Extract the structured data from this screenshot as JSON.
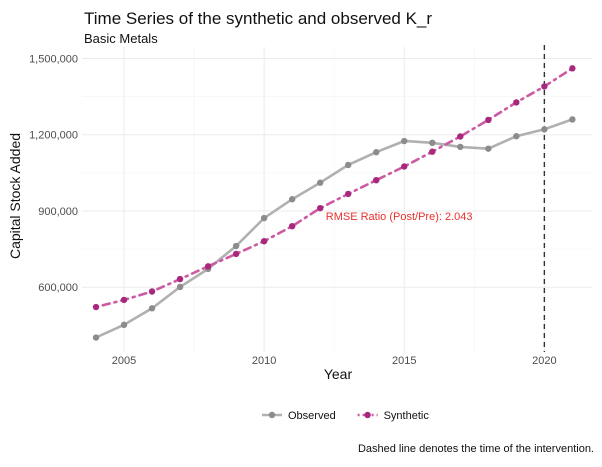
{
  "chart_data": {
    "type": "line",
    "title": "Time Series of the synthetic and observed K_r",
    "subtitle": "Basic Metals",
    "xlabel": "Year",
    "ylabel": "Capital Stock Added",
    "caption": "Dashed line denotes the time of the intervention.",
    "annotation": {
      "text": "RMSE Ratio (Post/Pre): 2.043",
      "x": 2012.2,
      "y": 865000,
      "color": "#e8322d"
    },
    "xlim": [
      2003.5,
      2021.7
    ],
    "ylim": [
      345000,
      1545000
    ],
    "x_ticks": [
      2005,
      2010,
      2015,
      2020
    ],
    "x_tick_labels": [
      "2005",
      "2010",
      "2015",
      "2020"
    ],
    "y_ticks": [
      600000,
      900000,
      1200000,
      1500000
    ],
    "y_tick_labels": [
      "600,000",
      "900,000",
      "1,200,000",
      "1,500,000"
    ],
    "intervention_x": 2020,
    "grid": true,
    "legend_position": "bottom",
    "x": [
      2004,
      2005,
      2006,
      2007,
      2008,
      2009,
      2010,
      2011,
      2012,
      2013,
      2014,
      2015,
      2016,
      2017,
      2018,
      2019,
      2020,
      2021
    ],
    "series": [
      {
        "name": "Observed",
        "color": "#8c8c8c",
        "line_color": "#b0b0b0",
        "linestyle": "solid",
        "values": [
          402000,
          452000,
          517000,
          601000,
          672000,
          762000,
          872000,
          946000,
          1011000,
          1081000,
          1131000,
          1175000,
          1168000,
          1152000,
          1145000,
          1194000,
          1221000,
          1260000
        ]
      },
      {
        "name": "Synthetic",
        "color": "#a8287e",
        "line_color": "#cc5aa3",
        "linestyle": "dotdash",
        "values": [
          522000,
          550000,
          583000,
          632000,
          682000,
          731000,
          781000,
          840000,
          911000,
          967000,
          1021000,
          1075000,
          1133000,
          1193000,
          1258000,
          1327000,
          1390000,
          1461000
        ]
      }
    ]
  }
}
